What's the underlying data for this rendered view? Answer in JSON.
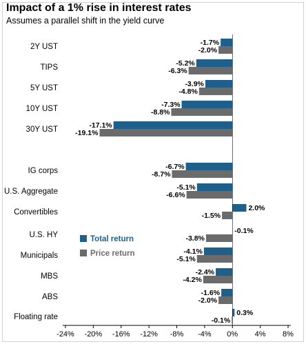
{
  "chart_data": {
    "type": "bar",
    "orientation": "horizontal",
    "title": "Impact of a 1% rise in interest rates",
    "subtitle": "Assumes a parallel shift in the yield curve",
    "categories": [
      "2Y UST",
      "TIPS",
      "5Y UST",
      "10Y UST",
      "30Y UST",
      "IG corps",
      "U.S. Aggregate",
      "Convertibles",
      "U.S. HY",
      "Municipals",
      "MBS",
      "ABS",
      "Floating rate"
    ],
    "series": [
      {
        "name": "Total return",
        "color": "#1f5f8b",
        "values": [
          -1.7,
          -5.2,
          -3.9,
          -7.3,
          -17.1,
          -6.7,
          -5.1,
          2.0,
          null,
          -4.1,
          -2.4,
          -1.6,
          0.3
        ],
        "labels": [
          "-1.7%",
          "-5.2%",
          "-3.9%",
          "-7.3%",
          "-17.1%",
          "-6.7%",
          "-5.1%",
          "2.0%",
          "-0.1%",
          "-4.1%",
          "-2.4%",
          "-1.6%",
          "0.3%"
        ]
      },
      {
        "name": "Price return",
        "color": "#6b6b6b",
        "values": [
          -2.0,
          -6.3,
          -4.8,
          -8.8,
          -19.1,
          -8.7,
          -6.6,
          -1.5,
          -3.8,
          -5.1,
          -4.2,
          -2.0,
          -0.1
        ],
        "labels": [
          "-2.0%",
          "-6.3%",
          "-4.8%",
          "-8.8%",
          "-19.1%",
          "-8.7%",
          "-6.6%",
          "-1.5%",
          "-3.8%",
          "-5.1%",
          "-4.2%",
          "-2.0%",
          "-0.1%"
        ]
      }
    ],
    "xlim": [
      -24,
      8
    ],
    "xticks": [
      -24,
      -20,
      -16,
      -12,
      -8,
      -4,
      0,
      4,
      8
    ],
    "xtick_labels": [
      "-24%",
      "-20%",
      "-16%",
      "-12%",
      "-8%",
      "-4%",
      "0%",
      "4%",
      "8%"
    ],
    "grid": false,
    "legend": "center-left"
  }
}
